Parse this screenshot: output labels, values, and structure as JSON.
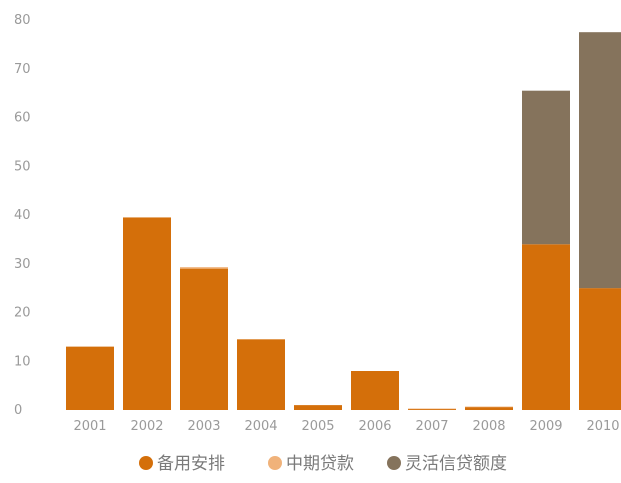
{
  "chart_data": {
    "type": "bar",
    "stacked": true,
    "categories": [
      "2001",
      "2002",
      "2003",
      "2004",
      "2005",
      "2006",
      "2007",
      "2008",
      "2009",
      "2010"
    ],
    "series": [
      {
        "name": "备用安排",
        "color": "#d46f0a",
        "values": [
          13,
          39.5,
          29,
          14.5,
          1,
          8,
          0.2,
          0.6,
          34,
          25
        ]
      },
      {
        "name": "中期贷款",
        "color": "#f0b27a",
        "values": [
          0,
          0,
          0.3,
          0,
          0,
          0,
          0.1,
          0.1,
          0,
          0
        ]
      },
      {
        "name": "灵活信贷额度",
        "color": "#85735c",
        "values": [
          0,
          0,
          0,
          0,
          0,
          0,
          0,
          0,
          31.5,
          52.5
        ]
      }
    ],
    "yticks": [
      0,
      10,
      20,
      30,
      40,
      50,
      60,
      70,
      80
    ],
    "ylim": [
      0,
      80
    ],
    "grid": false,
    "legend_position": "bottom"
  }
}
